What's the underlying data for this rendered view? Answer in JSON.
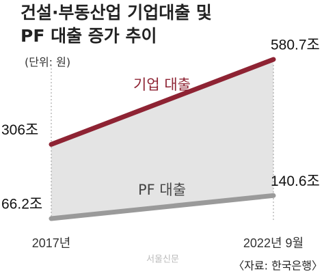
{
  "chart_data": {
    "type": "line",
    "title": "건설·부동산업 기업대출 및",
    "subtitle": "PF 대출 증가 추이",
    "unit": "(단위: 원)",
    "source": "〈자료: 한국은행〉",
    "watermark": "서울신문",
    "categories": [
      "2017년",
      "2022년 9월"
    ],
    "series": [
      {
        "name": "기업 대출",
        "color": "#8e2333",
        "values": [
          306,
          580.7
        ],
        "value_labels": [
          "306조",
          "580.7조"
        ]
      },
      {
        "name": "PF 대출",
        "color": "#9a9a9a",
        "values": [
          66.2,
          140.6
        ],
        "value_labels": [
          "66.2조",
          "140.6조"
        ]
      }
    ]
  }
}
